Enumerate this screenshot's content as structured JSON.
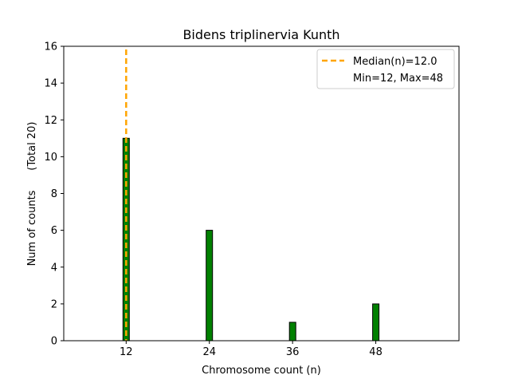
{
  "chart_data": {
    "type": "bar",
    "title": "Bidens triplinervia Kunth",
    "xlabel": "Chromosome count (n)",
    "ylabel": "Num of counts      (Total 20)",
    "xlim": [
      3,
      60
    ],
    "ylim": [
      0,
      16
    ],
    "xticks": [
      12,
      24,
      36,
      48
    ],
    "yticks": [
      0,
      2,
      4,
      6,
      8,
      10,
      12,
      14,
      16
    ],
    "bars": [
      {
        "x": 12,
        "value": 11
      },
      {
        "x": 24,
        "value": 6
      },
      {
        "x": 36,
        "value": 1
      },
      {
        "x": 48,
        "value": 2
      }
    ],
    "median_line": {
      "x": 12.0,
      "label": "Median(n)=12.0",
      "style": "dashed"
    },
    "legend": {
      "placement": "top-right",
      "entries": [
        "Median(n)=12.0",
        "Min=12, Max=48"
      ]
    },
    "colors": {
      "bar_fill": "#008000",
      "bar_edge": "#000000",
      "median_line": "#ffa500"
    },
    "grid": false
  }
}
